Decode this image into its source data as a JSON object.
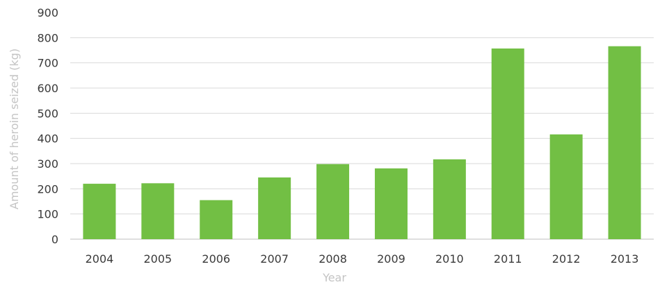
{
  "chart_data": {
    "type": "bar",
    "title": "",
    "xlabel": "Year",
    "ylabel": "Amount of heroin seized (kg)",
    "categories": [
      "2004",
      "2005",
      "2006",
      "2007",
      "2008",
      "2009",
      "2010",
      "2011",
      "2012",
      "2013"
    ],
    "values": [
      220,
      222,
      155,
      245,
      298,
      281,
      317,
      757,
      416,
      766
    ],
    "ylim": [
      0,
      900
    ],
    "yticks": [
      "0",
      "100",
      "200",
      "300",
      "400",
      "500",
      "600",
      "700",
      "800",
      "900"
    ],
    "grid": true,
    "legend": "none",
    "colors": {
      "bar": "#72bf44",
      "grid": "#d9d9d9",
      "tick_text": "#3a3a3a",
      "axis_title": "#c4c4c4"
    }
  }
}
